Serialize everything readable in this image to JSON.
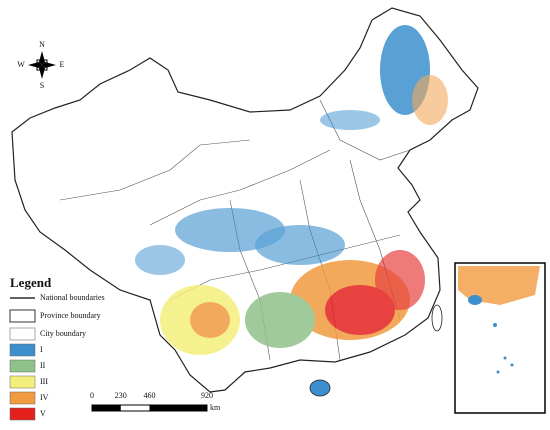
{
  "compass": {
    "north": "N",
    "south": "S",
    "east": "E",
    "west": "W"
  },
  "legend": {
    "title": "Legend",
    "boundaries": [
      "National boundaries",
      "Province boundary",
      "City boundary"
    ],
    "classes": [
      {
        "label": "I",
        "color": "#3b8fcd"
      },
      {
        "label": "II",
        "color": "#8fc18a"
      },
      {
        "label": "III",
        "color": "#f4ef7a"
      },
      {
        "label": "IV",
        "color": "#f19a3e"
      },
      {
        "label": "V",
        "color": "#e3201e"
      }
    ]
  },
  "scale_bar": {
    "ticks": [
      0,
      230,
      460,
      920
    ],
    "unit": "km"
  }
}
